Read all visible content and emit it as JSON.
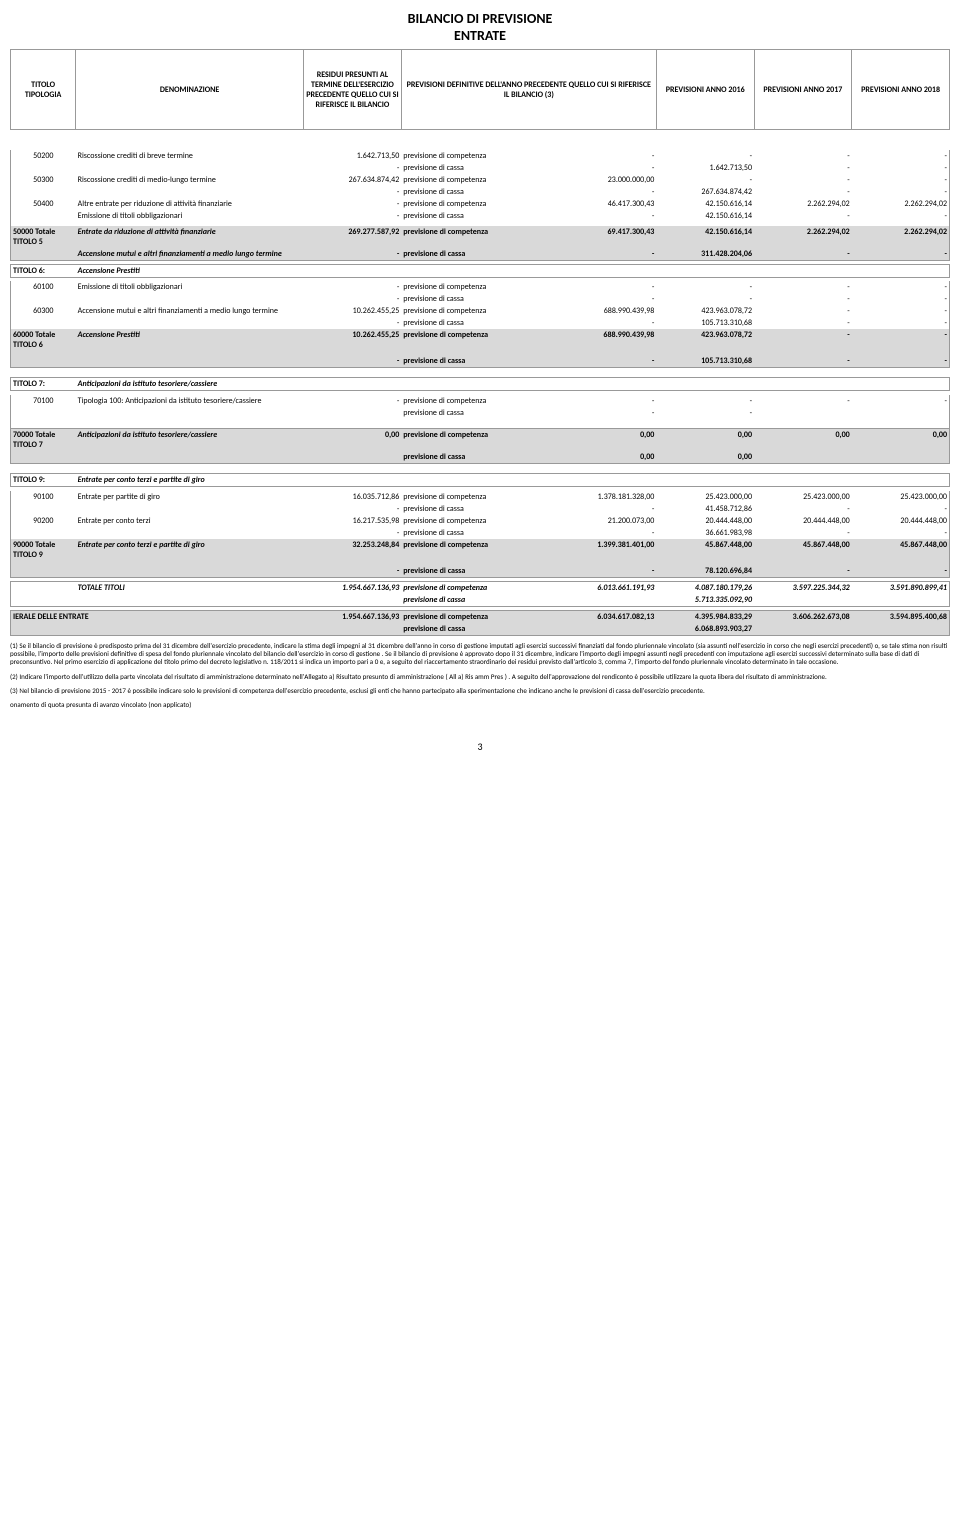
{
  "title1": "BILANCIO DI PREVISIONE",
  "title2": "ENTRATE",
  "headers": {
    "c1": "TITOLO TIPOLOGIA",
    "c2": "DENOMINAZIONE",
    "c3": "RESIDUI PRESUNTI AL TERMINE DELL'ESERCIZIO PRECEDENTE QUELLO CUI SI RIFERISCE IL BILANCIO",
    "c4": "PREVISIONI DEFINITIVE DELL'ANNO PRECEDENTE QUELLO CUI SI RIFERISCE IL BILANCIO (3)",
    "c5": "PREVISIONI ANNO 2016",
    "c6": "PREVISIONI ANNO 2017",
    "c7": "PREVISIONI ANNO 2018"
  },
  "labels": {
    "comp": "previsione di competenza",
    "cassa": "previsione di cassa",
    "dash": "-"
  },
  "r50200": {
    "code": "50200",
    "denom": "Riscossione crediti di breve termine",
    "res": "1.642.713,50",
    "cassa2016": "1.642.713,50"
  },
  "r50300": {
    "code": "50300",
    "denom": "Riscossione crediti di medio-lungo termine",
    "res": "267.634.874,42",
    "prev": "23.000.000,00",
    "cassa2016": "267.634.874,42"
  },
  "r50400": {
    "code": "50400",
    "denom": "Altre entrate per riduzione di attività finanziarie",
    "prev": "46.417.300,43",
    "v2016": "42.150.616,14",
    "v2017": "2.262.294,02",
    "v2018": "2.262.294,02"
  },
  "r50400b": {
    "denom": "Emissione di titoli obbligazionari",
    "cassa2016": "42.150.616,14"
  },
  "t50000": {
    "code": "50000 Totale TITOLO 5",
    "denom": "Entrate da riduzione di attività finanziarie",
    "denom2": "Accensione mutui e altri finanziamenti a medio lungo termine",
    "res": "269.277.587,92",
    "prev": "69.417.300,43",
    "v2016": "42.150.616,14",
    "v2017": "2.262.294,02",
    "v2018": "2.262.294,02",
    "cassa2016": "311.428.204,06"
  },
  "t6": {
    "code": "TITOLO 6:",
    "denom": "Accensione Prestiti"
  },
  "r60100": {
    "code": "60100",
    "denom": "Emissione di titoli obbligazionari"
  },
  "r60300": {
    "code": "60300",
    "denom": "Accensione mutui e altri finanziamenti a medio lungo termine",
    "res": "10.262.455,25",
    "prev": "688.990.439,98",
    "v2016": "423.963.078,72",
    "cassa2016": "105.713.310,68"
  },
  "t60000": {
    "code": "60000 Totale TITOLO 6",
    "denom": "Accensione Prestiti",
    "res": "10.262.455,25",
    "prev": "688.990.439,98",
    "v2016": "423.963.078,72",
    "cassa2016": "105.713.310,68"
  },
  "t7": {
    "code": "TITOLO 7:",
    "denom": "Anticipazioni da istituto tesoriere/cassiere"
  },
  "r70100": {
    "code": "70100",
    "denom": "Tipologia 100: Anticipazioni da istituto tesoriere/cassiere"
  },
  "t70000": {
    "code": "70000    Totale TITOLO 7",
    "denom": "Anticipazioni da istituto tesoriere/cassiere",
    "v": "0,00"
  },
  "t9": {
    "code": "TITOLO 9:",
    "denom": "Entrate per conto terzi e partite di giro"
  },
  "r90100": {
    "code": "90100",
    "denom": "Entrate per partite di giro",
    "res": "16.035.712,86",
    "prev": "1.378.181.328,00",
    "v2016": "25.423.000,00",
    "v2017": "25.423.000,00",
    "v2018": "25.423.000,00",
    "cassa2016": "41.458.712,86"
  },
  "r90200": {
    "code": "90200",
    "denom": "Entrate per conto terzi",
    "res": "16.217.535,98",
    "prev": "21.200.073,00",
    "v2016": "20.444.448,00",
    "v2017": "20.444.448,00",
    "v2018": "20.444.448,00",
    "cassa2016": "36.661.983,98"
  },
  "t90000": {
    "code": "90000 Totale TITOLO 9",
    "denom": "Entrate per conto terzi e partite di giro",
    "res": "32.253.248,84",
    "prev": "1.399.381.401,00",
    "v2016": "45.867.448,00",
    "v2017": "45.867.448,00",
    "v2018": "45.867.448,00",
    "cassa2016": "78.120.696,84"
  },
  "tottit": {
    "label": "TOTALE TITOLI",
    "res": "1.954.667.136,93",
    "prev": "6.013.661.191,93",
    "v2016": "4.087.180.179,26",
    "v2017": "3.597.225.344,32",
    "v2018": "3.591.890.899,41",
    "cassa2016": "5.713.335.092,90"
  },
  "totgen": {
    "label": "IERALE DELLE ENTRATE",
    "res": "1.954.667.136,93",
    "prev": "6.034.617.082,13",
    "v2016": "4.395.984.833,29",
    "v2017": "3.606.262.673,08",
    "v2018": "3.594.895.400,68",
    "cassa2016": "6.068.893.903,27"
  },
  "notes": {
    "n1": "(1) Se il bilancio di previsione è predisposto prima del 31 dicembre dell'esercizio precedente, indicare la stima  degli impegni al 31 dicembre dell'anno in corso di gestione imputati agli esercizi successivi finanziati dal fondo pluriennale vincolato (sia assunti nell'esercizio in corso che negli esercizi precedenti) o, se tale stima non risulti possibile,  l'importo delle previsioni definitive di spesa del  fondo pluriennale vincolato del bilancio dell'esercizio in corso di gestione . Se il bilancio di previsione è approvato dopo il 31 dicembre, indicare  l'importo degli impegni assunti negli precedenti con imputazione agli esercizi successivi determinato sulla base di dati di preconsuntivo.  Nel primo esercizio di applicazione del titolo primo del decreto legislativo n. 118/2011 si indica un importo pari a 0 e, a seguito del riaccertamento straordinario dei residui previsto dall'articolo 3, comma 7, l'importo del fondo pluriennale vincolato determinato in tale occasione.",
    "n2": "(2) Indicare l'importo dell'utilizzo della parte vincolata del risultato di amministrazione determinato nell'Allegato a)  Risultato presunto di amministrazione (  All a) Ris amm Pres ) . A seguito dell'approvazione del rendiconto è possibile utilizzare la quota libera del risultato di amministrazione.",
    "n3": "(3) Nel bilancio di previsione 2015 - 2017 è possibile indicare solo le previsioni di competenza dell'esercizio precedente, esclusi gli enti che hanno partecipato alla sperimentazione che indicano anche le previsioni di cassa dell'esercizio precedente.",
    "n4": "onamento di quota presunta di avanzo vincolato (non applicato)"
  },
  "pagenum": "3"
}
